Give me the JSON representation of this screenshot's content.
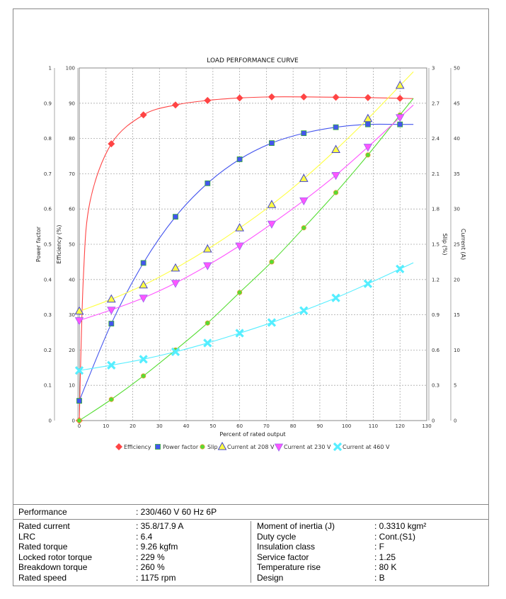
{
  "chart_data": {
    "type": "line",
    "title": "LOAD PERFORMANCE CURVE",
    "xlabel": "Percent of rated output",
    "xlim": [
      0,
      130
    ],
    "xticks": [
      0,
      10,
      20,
      30,
      40,
      50,
      60,
      70,
      80,
      90,
      100,
      110,
      120,
      130
    ],
    "grid": true,
    "legend_placement": "bottom",
    "axes": {
      "power_factor": {
        "label": "Power factor",
        "lim": [
          0,
          1
        ],
        "ticks": [
          "0",
          "0.1",
          "0.2",
          "0.3",
          "0.4",
          "0.5",
          "0.6",
          "0.7",
          "0.8",
          "0.9",
          "1"
        ],
        "side": "left"
      },
      "efficiency": {
        "label": "Efficiency (%)",
        "lim": [
          0,
          100
        ],
        "ticks": [
          "0",
          "10",
          "20",
          "30",
          "40",
          "50",
          "60",
          "70",
          "80",
          "90",
          "100"
        ],
        "side": "left"
      },
      "slip": {
        "label": "Slip (%)",
        "lim": [
          0,
          3
        ],
        "ticks": [
          "0",
          "0.3",
          "0.6",
          "0.9",
          "1.2",
          "1.5",
          "1.8",
          "2.1",
          "2.4",
          "2.7",
          "3"
        ],
        "side": "right"
      },
      "current": {
        "label": "Current (A)",
        "lim": [
          0,
          50
        ],
        "ticks": [
          "0",
          "5",
          "10",
          "15",
          "20",
          "25",
          "30",
          "35",
          "40",
          "45",
          "50"
        ],
        "side": "right"
      }
    },
    "x": [
      0,
      12,
      24,
      36,
      48,
      60,
      72,
      84,
      96,
      108,
      120
    ],
    "series": [
      {
        "name": "Efficiency",
        "axis": "efficiency",
        "color": "#ff4444",
        "marker": "diamond",
        "values": [
          0,
          78.5,
          86.7,
          89.5,
          90.8,
          91.5,
          91.8,
          91.8,
          91.7,
          91.6,
          91.4
        ]
      },
      {
        "name": "Power factor",
        "axis": "power_factor",
        "color": "#4455ee",
        "marker": "square",
        "values": [
          0.056,
          0.275,
          0.447,
          0.578,
          0.673,
          0.741,
          0.787,
          0.815,
          0.832,
          0.84,
          0.84
        ]
      },
      {
        "name": "Slip",
        "axis": "slip",
        "color": "#55dd33",
        "marker": "circle",
        "values": [
          0,
          0.18,
          0.38,
          0.6,
          0.83,
          1.09,
          1.35,
          1.64,
          1.94,
          2.26,
          2.6
        ]
      },
      {
        "name": "Current at 208 V",
        "axis": "current",
        "color": "#ffff44",
        "marker": "triangle-up",
        "values": [
          15.5,
          17.2,
          19.2,
          21.6,
          24.3,
          27.3,
          30.6,
          34.3,
          38.4,
          42.8,
          47.5
        ]
      },
      {
        "name": "Current at 230 V",
        "axis": "current",
        "color": "#ff55ff",
        "marker": "triangle-down",
        "values": [
          14.2,
          15.7,
          17.4,
          19.5,
          22,
          24.8,
          27.9,
          31.2,
          34.8,
          38.8,
          43
        ]
      },
      {
        "name": "Current at 460 V",
        "axis": "current",
        "color": "#55eeff",
        "marker": "x",
        "values": [
          7.1,
          7.85,
          8.7,
          9.75,
          11,
          12.4,
          13.9,
          15.6,
          17.4,
          19.4,
          21.5
        ]
      }
    ]
  },
  "table": {
    "performance": {
      "label": "Performance",
      "value": ": 230/460 V 60 Hz 6P"
    },
    "left": [
      {
        "label": "Rated current",
        "value": ": 35.8/17.9 A"
      },
      {
        "label": "LRC",
        "value": ": 6.4"
      },
      {
        "label": "Rated torque",
        "value": ": 9.26 kgfm"
      },
      {
        "label": "Locked rotor torque",
        "value": ": 229 %"
      },
      {
        "label": "Breakdown torque",
        "value": ": 260 %"
      },
      {
        "label": "Rated speed",
        "value": ": 1175 rpm"
      }
    ],
    "right": [
      {
        "label": "Moment of inertia (J)",
        "value": ": 0.3310 kgm²"
      },
      {
        "label": "Duty cycle",
        "value": ": Cont.(S1)"
      },
      {
        "label": "Insulation class",
        "value": ": F"
      },
      {
        "label": "Service factor",
        "value": ": 1.25"
      },
      {
        "label": "Temperature rise",
        "value": ": 80 K"
      },
      {
        "label": "Design",
        "value": ": B"
      }
    ]
  }
}
